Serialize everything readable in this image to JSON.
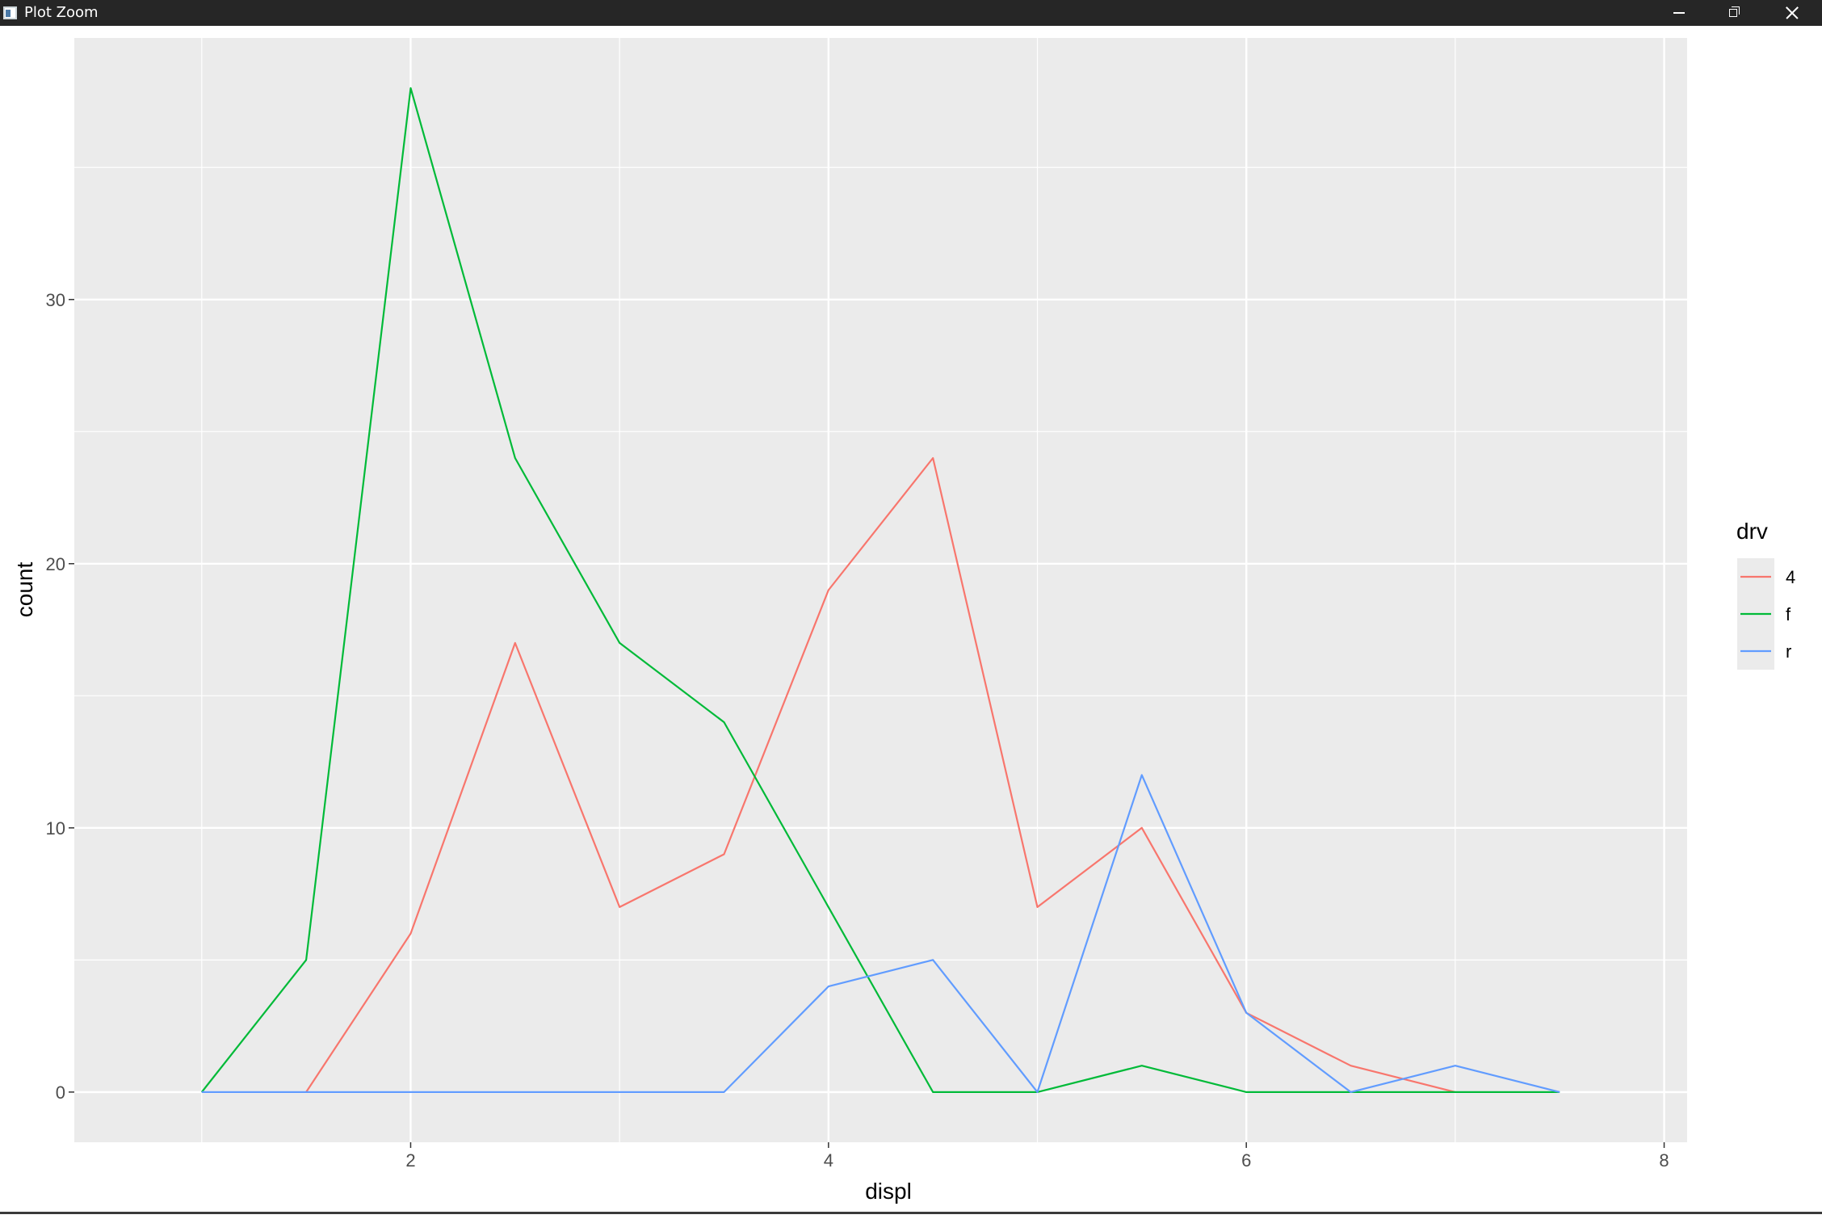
{
  "window": {
    "title": "Plot Zoom",
    "icon": "plot-zoom-app-icon",
    "controls": [
      "minimize-icon",
      "restore-icon",
      "close-icon"
    ]
  },
  "chart_data": {
    "type": "line",
    "title": "",
    "xlabel": "displ",
    "ylabel": "count",
    "xlim": [
      0.39,
      8.11
    ],
    "ylim": [
      -1.9,
      39.9
    ],
    "x_ticks": [
      2,
      4,
      6,
      8
    ],
    "x_tick_labels": [
      "2",
      "4",
      "6",
      "8"
    ],
    "y_ticks": [
      0,
      10,
      20,
      30
    ],
    "y_tick_labels": [
      "0",
      "10",
      "20",
      "30"
    ],
    "x_minor": [
      1,
      3,
      5,
      7
    ],
    "y_minor": [
      5,
      15,
      25,
      35
    ],
    "grid": true,
    "legend": {
      "title": "drv",
      "placement": "right",
      "entries": [
        "4",
        "f",
        "r"
      ]
    },
    "colors": {
      "4": "#F8766D",
      "f": "#00BA38",
      "r": "#619CFF",
      "panel": "#EBEBEB",
      "grid": "#FFFFFF"
    },
    "series": [
      {
        "name": "4",
        "x": [
          1.5,
          2.0,
          2.5,
          3.0,
          3.5,
          4.0,
          4.5,
          5.0,
          5.5,
          6.0,
          6.5,
          7.0
        ],
        "values": [
          0,
          6,
          17,
          7,
          9,
          19,
          24,
          7,
          10,
          3,
          1,
          0
        ]
      },
      {
        "name": "f",
        "x": [
          1.0,
          1.5,
          2.0,
          2.5,
          3.0,
          3.5,
          4.0,
          4.5,
          5.0,
          5.5,
          6.0,
          6.5,
          7.0,
          7.5
        ],
        "values": [
          0,
          5,
          38,
          24,
          17,
          14,
          7,
          0,
          0,
          1,
          0,
          0,
          0,
          0
        ]
      },
      {
        "name": "r",
        "x": [
          1.0,
          1.5,
          2.0,
          2.5,
          3.0,
          3.5,
          4.0,
          4.5,
          5.0,
          5.5,
          6.0,
          6.5,
          7.0,
          7.5
        ],
        "values": [
          0,
          0,
          0,
          0,
          0,
          0,
          4,
          5,
          0,
          12,
          3,
          0,
          1,
          0
        ]
      }
    ]
  }
}
